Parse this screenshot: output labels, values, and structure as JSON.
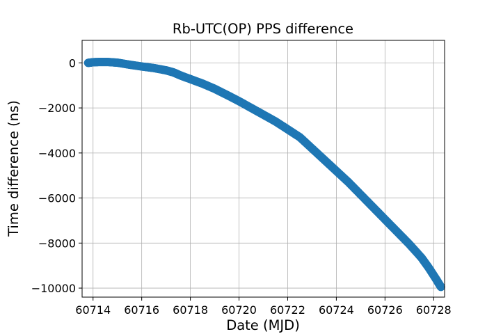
{
  "chart_data": {
    "type": "scatter",
    "title": "Rb-UTC(OP) PPS difference",
    "xlabel": "Date (MJD)",
    "ylabel": "Time difference (ns)",
    "xlim": [
      60713.55,
      60728.45
    ],
    "ylim": [
      -10400,
      1000
    ],
    "xticks": [
      60714,
      60716,
      60718,
      60720,
      60722,
      60724,
      60726,
      60728
    ],
    "xtick_labels": [
      "60714",
      "60716",
      "60718",
      "60720",
      "60722",
      "60724",
      "60726",
      "60728"
    ],
    "yticks": [
      0,
      -2000,
      -4000,
      -6000,
      -8000,
      -10000
    ],
    "ytick_labels": [
      "0",
      "−2000",
      "−4000",
      "−6000",
      "−8000",
      "−10000"
    ],
    "grid": true,
    "marker_color": "#1f77b4",
    "series": [
      {
        "x": [
          60713.8,
          60714.0,
          60714.3,
          60714.6,
          60715.0,
          60715.5,
          60716.0,
          60716.5,
          60717.0,
          60717.3,
          60717.6,
          60718.0,
          60718.5,
          60719.0,
          60719.5,
          60720.0,
          60720.5,
          60721.0,
          60721.5,
          60722.0,
          60722.5,
          60723.0,
          60723.5,
          60724.0,
          60724.5,
          60725.0,
          60725.5,
          60726.0,
          60726.5,
          60727.0,
          60727.5,
          60727.8,
          60728.1,
          60728.3
        ],
        "y": [
          0,
          30,
          40,
          40,
          10,
          -80,
          -160,
          -230,
          -330,
          -420,
          -560,
          -720,
          -920,
          -1150,
          -1420,
          -1700,
          -2000,
          -2300,
          -2600,
          -2950,
          -3300,
          -3800,
          -4300,
          -4800,
          -5300,
          -5850,
          -6400,
          -6950,
          -7500,
          -8050,
          -8650,
          -9100,
          -9600,
          -9950
        ]
      }
    ]
  }
}
